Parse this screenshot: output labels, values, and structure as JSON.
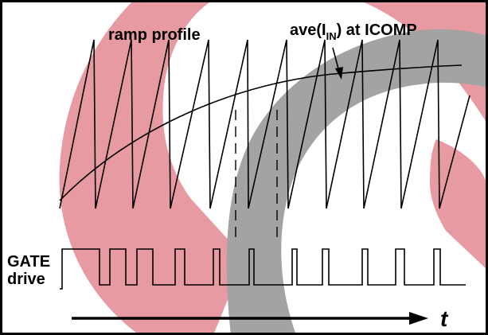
{
  "labels": {
    "ramp_profile": "ramp profile",
    "ave_prefix": "ave(I",
    "ave_subscript": "IN",
    "ave_suffix": ") at ICOMP",
    "gate_line1": "GATE",
    "gate_line2": "drive",
    "time_axis": "t"
  },
  "watermark": {
    "colors": {
      "pink": "#e89aa2",
      "gray": "#a3a3a3"
    }
  },
  "colors": {
    "ink": "#000000",
    "background": "#ffffff"
  }
}
